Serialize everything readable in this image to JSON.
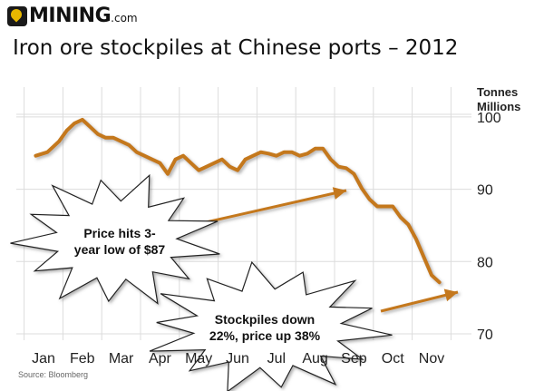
{
  "brand": {
    "name": "MINING",
    "suffix": ".com"
  },
  "chart_data": {
    "type": "line",
    "title": "Iron ore stockpiles at Chinese ports – 2012",
    "ylabel": [
      "Tonnes",
      "Millions"
    ],
    "source": "Source: Bloomberg",
    "ylim": [
      70,
      105
    ],
    "yticks": [
      70,
      80,
      90,
      100
    ],
    "xlim": [
      0.8,
      11.3
    ],
    "months": [
      {
        "label": "Jan",
        "x": 1
      },
      {
        "label": "Feb",
        "x": 2
      },
      {
        "label": "Mar",
        "x": 3
      },
      {
        "label": "Apr",
        "x": 4
      },
      {
        "label": "May",
        "x": 5
      },
      {
        "label": "Jun",
        "x": 6
      },
      {
        "label": "Jul",
        "x": 7
      },
      {
        "label": "Aug",
        "x": 8
      },
      {
        "label": "Sep",
        "x": 9
      },
      {
        "label": "Oct",
        "x": 10
      },
      {
        "label": "Nov",
        "x": 11
      }
    ],
    "grid": true,
    "series": [
      {
        "color": "#c4781e",
        "x": [
          0.8,
          1.1,
          1.4,
          1.6,
          1.8,
          2.0,
          2.2,
          2.4,
          2.6,
          2.8,
          3.0,
          3.2,
          3.4,
          3.6,
          3.8,
          4.0,
          4.2,
          4.4,
          4.6,
          4.8,
          5.0,
          5.2,
          5.4,
          5.6,
          5.8,
          6.0,
          6.2,
          6.4,
          6.6,
          6.8,
          7.0,
          7.2,
          7.4,
          7.6,
          7.8,
          8.0,
          8.2,
          8.4,
          8.6,
          8.8,
          9.0,
          9.2,
          9.4,
          9.6,
          9.8,
          10.0,
          10.2,
          10.4,
          10.6,
          10.8,
          11.0,
          11.2
        ],
        "y": [
          95.5,
          96,
          97.5,
          99,
          100,
          100.5,
          99.5,
          98.5,
          98,
          98,
          97.5,
          97,
          96,
          95.5,
          95,
          94.5,
          93,
          95,
          95.5,
          94.5,
          93.5,
          94,
          94.5,
          95,
          94,
          93.5,
          95,
          95.5,
          96,
          95.8,
          95.5,
          96,
          96,
          95.5,
          95.8,
          96.5,
          96.5,
          95,
          94,
          93.8,
          93,
          91,
          89.5,
          88.5,
          88.5,
          88.5,
          87,
          86,
          84,
          81.5,
          79,
          78
        ]
      }
    ],
    "annotations": [
      {
        "lines": [
          "Price hits 3-",
          "year low of $87"
        ]
      },
      {
        "lines": [
          "Stockpiles down",
          "22%, price up 38%"
        ]
      }
    ]
  }
}
